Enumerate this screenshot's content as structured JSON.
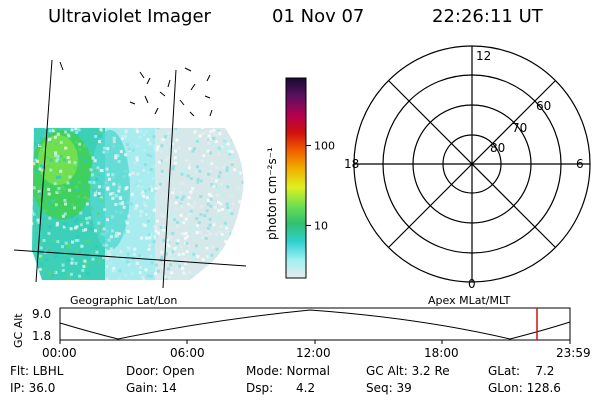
{
  "header": {
    "title": "Ultraviolet Imager",
    "date": "01 Nov 07",
    "time": "22:26:11 UT"
  },
  "colorbar": {
    "label": "photon cm⁻²s⁻¹",
    "ticks": [
      {
        "label": "100",
        "value": 100
      },
      {
        "label": "10",
        "value": 10
      }
    ],
    "stops": [
      "#e6ecec",
      "#9ff0f0",
      "#30d0d0",
      "#30c070",
      "#70e050",
      "#e0f020",
      "#f0b000",
      "#f06000",
      "#d01010",
      "#b00050",
      "#5a1060",
      "#1a0a30"
    ]
  },
  "polar": {
    "mlt_labels": {
      "top": "12",
      "left": "18",
      "right": "6",
      "bottom": "0"
    },
    "lat_labels": [
      "60",
      "70",
      "80"
    ]
  },
  "panel_labels": {
    "left": "Geographic Lat/Lon",
    "right": "Apex MLat/MLT"
  },
  "altitude": {
    "axis_label": "GC Alt",
    "y_ticks": [
      "9.0",
      "1.8"
    ],
    "y_range": [
      1.8,
      9.0
    ],
    "x_ticks": [
      "00:00",
      "06:00",
      "12:00",
      "18:00",
      "23:59"
    ],
    "current_time": "22:26:11"
  },
  "info": {
    "flt": "Flt: LBHL",
    "door": "Door: Open",
    "mode": "Mode: Normal",
    "gc_alt": "GC Alt: 3.2 Re",
    "glat": "GLat:    7.2",
    "ip": "IP: 36.0",
    "gain": "Gain: 14",
    "dsp": "Dsp:      4.2",
    "seq": "Seq: 39",
    "glon": "GLon: 128.6"
  },
  "colors": {
    "marker": "#d01010"
  }
}
